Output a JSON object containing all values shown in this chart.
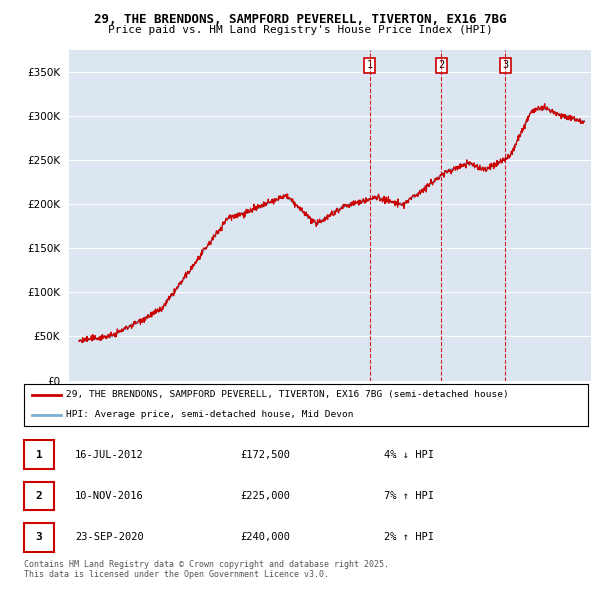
{
  "title_line1": "29, THE BRENDONS, SAMPFORD PEVERELL, TIVERTON, EX16 7BG",
  "title_line2": "Price paid vs. HM Land Registry's House Price Index (HPI)",
  "background_color": "#ffffff",
  "plot_bg_color": "#dce6f1",
  "grid_color": "#ffffff",
  "hpi_color": "#7bafd4",
  "price_color": "#cc0000",
  "ylim": [
    0,
    375000
  ],
  "yticks": [
    0,
    50000,
    100000,
    150000,
    200000,
    250000,
    300000,
    350000
  ],
  "legend_label_red": "29, THE BRENDONS, SAMPFORD PEVERELL, TIVERTON, EX16 7BG (semi-detached house)",
  "legend_label_blue": "HPI: Average price, semi-detached house, Mid Devon",
  "footer_line1": "Contains HM Land Registry data © Crown copyright and database right 2025.",
  "footer_line2": "This data is licensed under the Open Government Licence v3.0.",
  "transaction_table": [
    {
      "num": "1",
      "date": "16-JUL-2012",
      "price": "£172,500",
      "info": "4% ↓ HPI"
    },
    {
      "num": "2",
      "date": "10-NOV-2016",
      "price": "£225,000",
      "info": "7% ↑ HPI"
    },
    {
      "num": "3",
      "date": "23-SEP-2020",
      "price": "£240,000",
      "info": "2% ↑ HPI"
    }
  ],
  "trans_times": [
    2012.54,
    2016.87,
    2020.73
  ]
}
